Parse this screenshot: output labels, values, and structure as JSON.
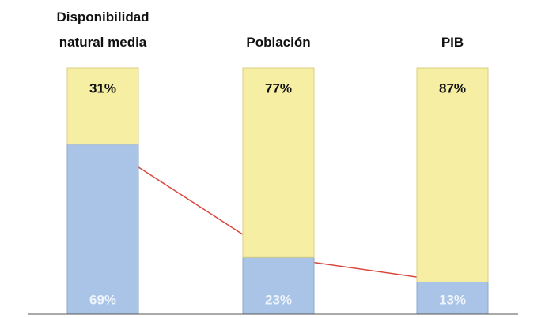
{
  "chart_data": {
    "type": "stacked_bar",
    "categories": [
      "Disponibilidad natural media",
      "Población",
      "PIB"
    ],
    "series": [
      {
        "color": "#a9c4e6",
        "values": [
          69,
          23,
          13
        ],
        "value_labels": [
          "69%",
          "23%",
          "13%"
        ]
      },
      {
        "color": "#f6efa3",
        "values": [
          31,
          77,
          87
        ],
        "value_labels": [
          "31%",
          "77%",
          "87%"
        ]
      }
    ],
    "line_color": "#d9463b",
    "ylim": [
      0,
      100
    ]
  }
}
